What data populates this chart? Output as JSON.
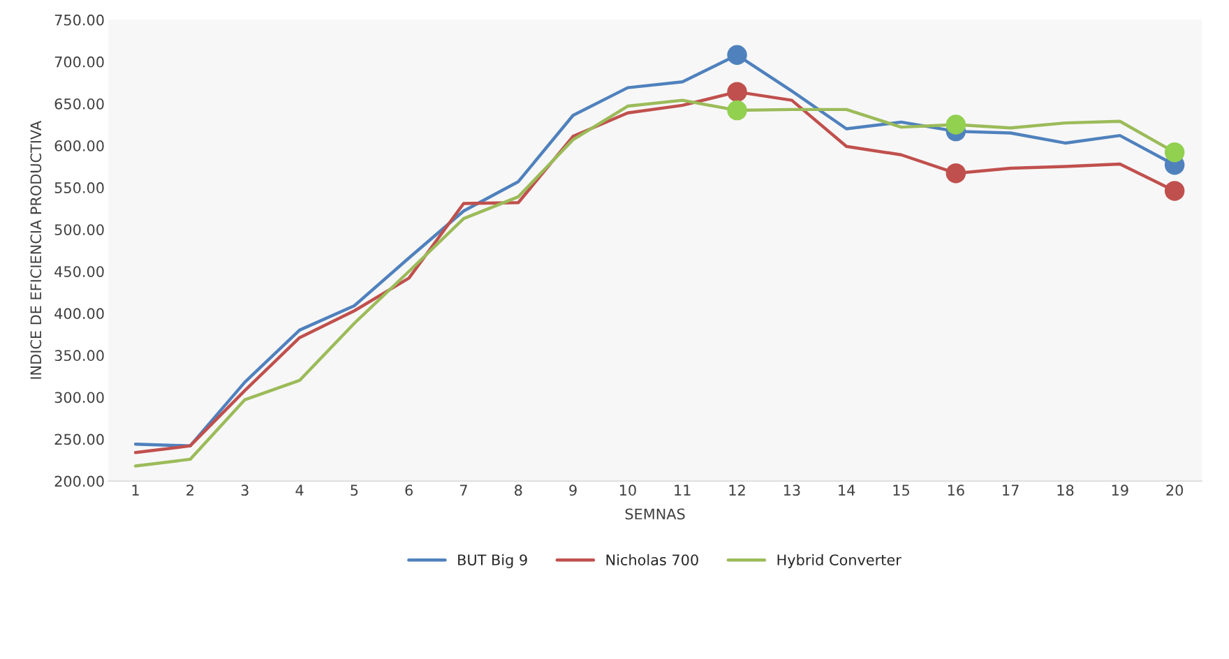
{
  "chart_data": {
    "type": "line",
    "xlabel": "SEMNAS",
    "ylabel": "INDICE DE EFICIENCIA PRODUCTIVA",
    "categories": [
      "1",
      "2",
      "3",
      "4",
      "5",
      "6",
      "7",
      "8",
      "9",
      "10",
      "11",
      "12",
      "13",
      "14",
      "15",
      "16",
      "17",
      "18",
      "19",
      "20"
    ],
    "series": [
      {
        "name": "BUT Big 9",
        "color": "#4f81bd",
        "values": [
          244,
          242,
          318,
          380,
          409,
          466,
          522,
          557,
          636,
          669,
          676,
          708,
          665,
          620,
          628,
          617,
          615,
          603,
          612,
          577
        ]
      },
      {
        "name": "Nicholas 700",
        "color": "#c0504d",
        "values": [
          234,
          242,
          308,
          371,
          403,
          442,
          531,
          532,
          611,
          639,
          648,
          664,
          654,
          599,
          589,
          567,
          573,
          575,
          578,
          546
        ]
      },
      {
        "name": "Hybrid Converter",
        "color": "#9bbb59",
        "values": [
          218,
          226,
          297,
          320,
          388,
          450,
          513,
          539,
          607,
          647,
          654,
          642,
          643,
          643,
          622,
          625,
          621,
          627,
          629,
          592
        ]
      },
      {
        "type": "scatter",
        "marker": "circle",
        "color": "#4f81bd",
        "x": [
          "12",
          "16",
          "20"
        ],
        "values": [
          708,
          617,
          577
        ]
      },
      {
        "type": "scatter",
        "marker": "circle",
        "color": "#c0504d",
        "x": [
          "12",
          "16",
          "20"
        ],
        "values": [
          664,
          567,
          546
        ]
      },
      {
        "type": "scatter",
        "marker": "circle",
        "color": "#92d050",
        "x": [
          "12",
          "16",
          "20"
        ],
        "values": [
          642,
          625,
          592
        ]
      }
    ],
    "ylim": [
      200,
      750
    ],
    "yticks": [
      {
        "value": 200,
        "label": "200.00"
      },
      {
        "value": 250,
        "label": "250.00"
      },
      {
        "value": 300,
        "label": "300.00"
      },
      {
        "value": 350,
        "label": "350.00"
      },
      {
        "value": 400,
        "label": "400.00"
      },
      {
        "value": 450,
        "label": "450.00"
      },
      {
        "value": 500,
        "label": "500.00"
      },
      {
        "value": 550,
        "label": "550.00"
      },
      {
        "value": 600,
        "label": "600.00"
      },
      {
        "value": 650,
        "label": "650.00"
      },
      {
        "value": 700,
        "label": "700.00"
      },
      {
        "value": 750,
        "label": "750.00"
      }
    ],
    "grid": false,
    "legend": "bottom",
    "marker": "none",
    "line_style": "solid"
  }
}
